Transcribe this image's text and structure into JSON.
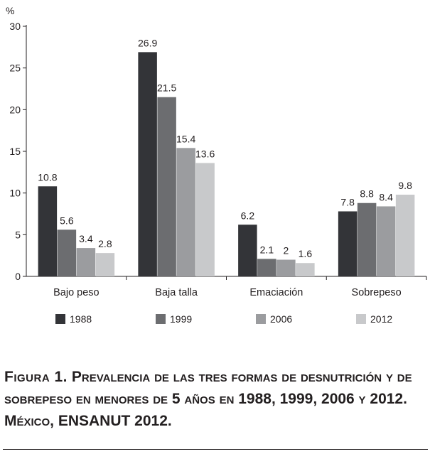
{
  "chart_data": {
    "type": "bar",
    "ylabel": "%",
    "ylim": [
      0,
      30
    ],
    "yticks": [
      0,
      5,
      10,
      15,
      20,
      25,
      30
    ],
    "categories": [
      "Bajo peso",
      "Baja talla",
      "Emaciación",
      "Sobrepeso"
    ],
    "series": [
      {
        "name": "1988",
        "color": "#333438",
        "values": [
          10.8,
          26.9,
          6.2,
          7.8
        ],
        "labels": [
          "10.8",
          "26.9",
          "6.2",
          "7.8"
        ]
      },
      {
        "name": "1999",
        "color": "#6c6d70",
        "values": [
          5.6,
          21.5,
          2.1,
          8.8
        ],
        "labels": [
          "5.6",
          "21.5",
          "2.1",
          "8.8"
        ]
      },
      {
        "name": "2006",
        "color": "#9b9c9f",
        "values": [
          3.4,
          15.4,
          2,
          8.4
        ],
        "labels": [
          "3.4",
          "15.4",
          "2",
          "8.4"
        ]
      },
      {
        "name": "2012",
        "color": "#c8c9cb",
        "values": [
          2.8,
          13.6,
          1.6,
          9.8
        ],
        "labels": [
          "2.8",
          "13.6",
          "1.6",
          "9.8"
        ]
      }
    ],
    "legend": "bottom"
  },
  "caption": {
    "label": "Figura 1.",
    "text": "Prevalencia de las tres formas de desnutrición y de sobrepeso en menores de 5 años en 1988, 1999, 2006 y 2012. México, ENSANUT 2012."
  }
}
